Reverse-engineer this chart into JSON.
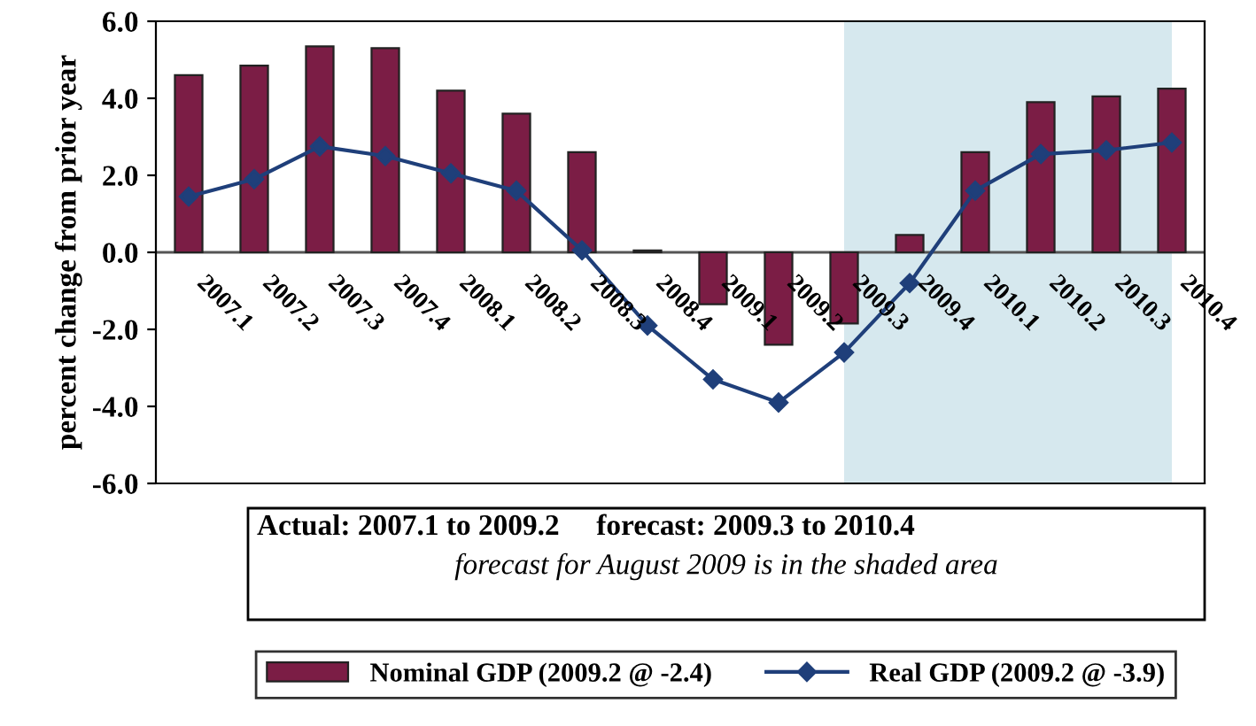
{
  "chart_data": {
    "type": "bar",
    "ylabel": "percent change from prior year",
    "categories": [
      "2007.1",
      "2007.2",
      "2007.3",
      "2007.4",
      "2008.1",
      "2008.2",
      "2008.3",
      "2008.4",
      "2009.1",
      "2009.2",
      "2009.3",
      "2009.4",
      "2010.1",
      "2010.2",
      "2010.3",
      "2010.4"
    ],
    "series": [
      {
        "name": "Nominal GDP (2009.2 @ -2.4)",
        "color": "#7b1d45",
        "values": [
          4.6,
          4.85,
          5.35,
          5.3,
          4.2,
          3.6,
          2.6,
          0.05,
          -1.35,
          -2.4,
          -1.85,
          0.45,
          2.6,
          3.9,
          4.05,
          4.25
        ]
      },
      {
        "name": "Real GDP (2009.2 @ -3.9)",
        "type": "line",
        "color": "#1f3f7a",
        "marker": "diamond",
        "values": [
          1.45,
          1.9,
          2.75,
          2.5,
          2.05,
          1.6,
          0.05,
          -1.9,
          -3.3,
          -3.9,
          -2.6,
          -0.8,
          1.6,
          2.55,
          2.65,
          2.85
        ]
      }
    ],
    "ylim": [
      -6,
      6
    ],
    "yticks": [
      {
        "value": -6,
        "label": "-6.0"
      },
      {
        "value": -4,
        "label": "-4.0"
      },
      {
        "value": -2,
        "label": "-2.0"
      },
      {
        "value": 0,
        "label": "0.0"
      },
      {
        "value": 2,
        "label": "2.0"
      },
      {
        "value": 4,
        "label": "4.0"
      },
      {
        "value": 6,
        "label": "6.0"
      }
    ],
    "bands": [
      {
        "axis": "x",
        "from": "2009.3",
        "to": "2010.4",
        "color": "#d6e8ee"
      }
    ],
    "annotations": [
      "Actual: 2007.1 to 2009.2     forecast: 2009.3 to 2010.4",
      "forecast for August 2009 is in the shaded area"
    ],
    "grid": false,
    "legend": "bottom"
  }
}
